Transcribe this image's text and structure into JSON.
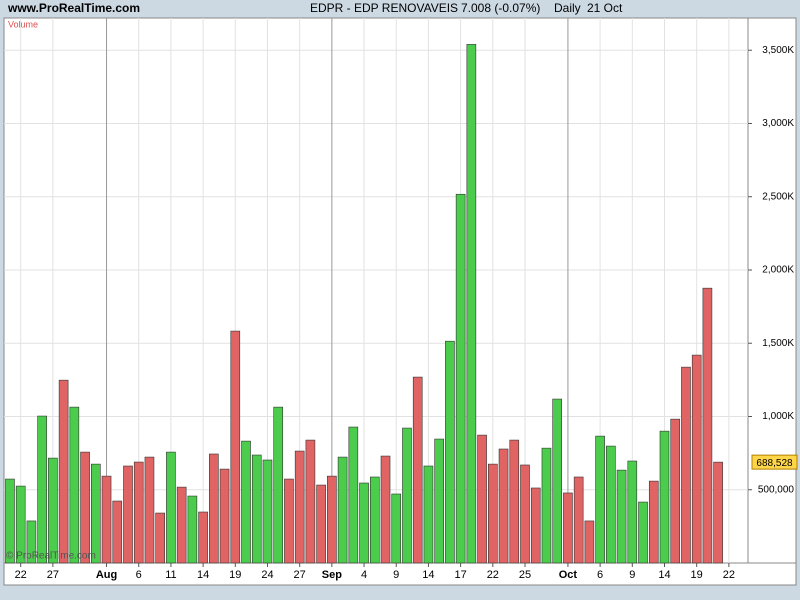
{
  "header": {
    "site": "www.ProRealTime.com",
    "instrument": "EDPR - EDP RENOVAVEIS",
    "quote": "7.008 (-0.07%)",
    "period": "Daily",
    "date": "21 Oct"
  },
  "chart_data": {
    "type": "bar",
    "title": "Volume",
    "watermark": "© ProRealTime.com",
    "categories": [
      null,
      "22",
      null,
      null,
      "27",
      null,
      null,
      null,
      null,
      "Aug",
      null,
      null,
      "6",
      null,
      null,
      "11",
      null,
      null,
      "14",
      null,
      null,
      "19",
      null,
      null,
      "24",
      null,
      null,
      "27",
      null,
      null,
      "Sep",
      null,
      null,
      "4",
      null,
      null,
      "9",
      null,
      null,
      "14",
      null,
      null,
      "17",
      null,
      null,
      "22",
      null,
      null,
      "25",
      null,
      null,
      null,
      "Oct",
      null,
      null,
      "6",
      null,
      null,
      "9",
      null,
      null,
      "14",
      null,
      null,
      "19",
      null,
      null,
      "22"
    ],
    "values": [
      573000,
      525000,
      287000,
      1003000,
      716000,
      1248000,
      1064000,
      757000,
      675000,
      593000,
      423000,
      662000,
      689000,
      723000,
      341000,
      757000,
      518000,
      457000,
      348000,
      744000,
      641000,
      1583000,
      832000,
      737000,
      703000,
      1064000,
      573000,
      764000,
      839000,
      532000,
      593000,
      723000,
      928000,
      546000,
      587000,
      730000,
      471000,
      921000,
      1269000,
      662000,
      846000,
      1514000,
      2517000,
      3540000,
      873000,
      675000,
      778000,
      839000,
      669000,
      512000,
      784000,
      1119000,
      478000,
      587000,
      287000,
      866000,
      798000,
      634000,
      696000,
      416000,
      559000,
      900000,
      982000,
      1337000,
      1419000,
      1876000,
      688528,
      null
    ],
    "colors": [
      "up",
      "up",
      "up",
      "up",
      "up",
      "down",
      "up",
      "down",
      "up",
      "down",
      "down",
      "down",
      "down",
      "down",
      "down",
      "up",
      "down",
      "up",
      "down",
      "down",
      "down",
      "down",
      "up",
      "up",
      "up",
      "up",
      "down",
      "down",
      "down",
      "down",
      "down",
      "up",
      "up",
      "up",
      "up",
      "down",
      "up",
      "up",
      "down",
      "up",
      "up",
      "up",
      "up",
      "up",
      "down",
      "down",
      "down",
      "down",
      "down",
      "down",
      "up",
      "up",
      "down",
      "down",
      "down",
      "up",
      "up",
      "up",
      "up",
      "up",
      "down",
      "up",
      "down",
      "down",
      "down",
      "down",
      "down",
      null
    ],
    "palette": {
      "up": "#4ccc4c",
      "down": "#e06464"
    },
    "last_label": "688,528",
    "ylim": [
      0,
      3720000
    ],
    "yticks": [
      {
        "value": 500000,
        "label": "500,000"
      },
      {
        "value": 1000000,
        "label": "1,000K"
      },
      {
        "value": 1500000,
        "label": "1,500K"
      },
      {
        "value": 2000000,
        "label": "2,000K"
      },
      {
        "value": 2500000,
        "label": "2,500K"
      },
      {
        "value": 3000000,
        "label": "3,000K"
      },
      {
        "value": 3500000,
        "label": "3,500K"
      }
    ],
    "grid": true
  }
}
